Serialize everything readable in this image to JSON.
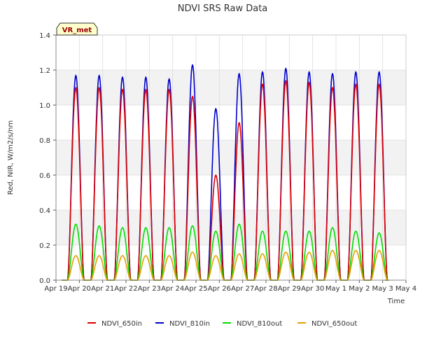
{
  "chart_data": {
    "type": "line",
    "title": "NDVI SRS Raw Data",
    "xlabel": "Time",
    "ylabel": "Red, NIR, W/m2/s/nm",
    "ylim": [
      0,
      1.4
    ],
    "xlim": [
      0,
      15
    ],
    "yticks": [
      0.0,
      0.2,
      0.4,
      0.6,
      0.8,
      1.0,
      1.2,
      1.4
    ],
    "ytick_labels": [
      "0.0",
      "0.2",
      "0.4",
      "0.6",
      "0.8",
      "1.0",
      "1.2",
      "1.4"
    ],
    "xtick_labels": [
      "Apr 19",
      "Apr 20",
      "Apr 21",
      "Apr 22",
      "Apr 23",
      "Apr 24",
      "Apr 25",
      "Apr 26",
      "Apr 27",
      "Apr 28",
      "Apr 29",
      "Apr 30",
      "May 1",
      "May 2",
      "May 3",
      "May 4"
    ],
    "annotation": "VR_met",
    "grid": true,
    "legend_position": "bottom",
    "series": [
      {
        "name": "NDVI_650in",
        "color": "#dd0000",
        "peaks": [
          1.1,
          1.1,
          1.09,
          1.09,
          1.09,
          1.05,
          0.6,
          0.9,
          1.12,
          1.14,
          1.13,
          1.1,
          1.12,
          1.12
        ]
      },
      {
        "name": "NDVI_810in",
        "color": "#0000cc",
        "peaks": [
          1.17,
          1.17,
          1.16,
          1.16,
          1.15,
          1.23,
          0.98,
          1.18,
          1.19,
          1.21,
          1.19,
          1.18,
          1.19,
          1.19
        ]
      },
      {
        "name": "NDVI_810out",
        "color": "#00dd00",
        "peaks": [
          0.32,
          0.31,
          0.3,
          0.3,
          0.3,
          0.31,
          0.28,
          0.32,
          0.28,
          0.28,
          0.28,
          0.3,
          0.28,
          0.27
        ]
      },
      {
        "name": "NDVI_650out",
        "color": "#e69f00",
        "peaks": [
          0.14,
          0.14,
          0.14,
          0.14,
          0.14,
          0.16,
          0.14,
          0.15,
          0.15,
          0.16,
          0.16,
          0.17,
          0.17,
          0.17
        ]
      }
    ],
    "peak_day_offsets": [
      0.85,
      1.85,
      2.85,
      3.85,
      4.85,
      5.85,
      6.85,
      7.85,
      8.85,
      9.85,
      10.85,
      11.85,
      12.85,
      13.85
    ]
  }
}
